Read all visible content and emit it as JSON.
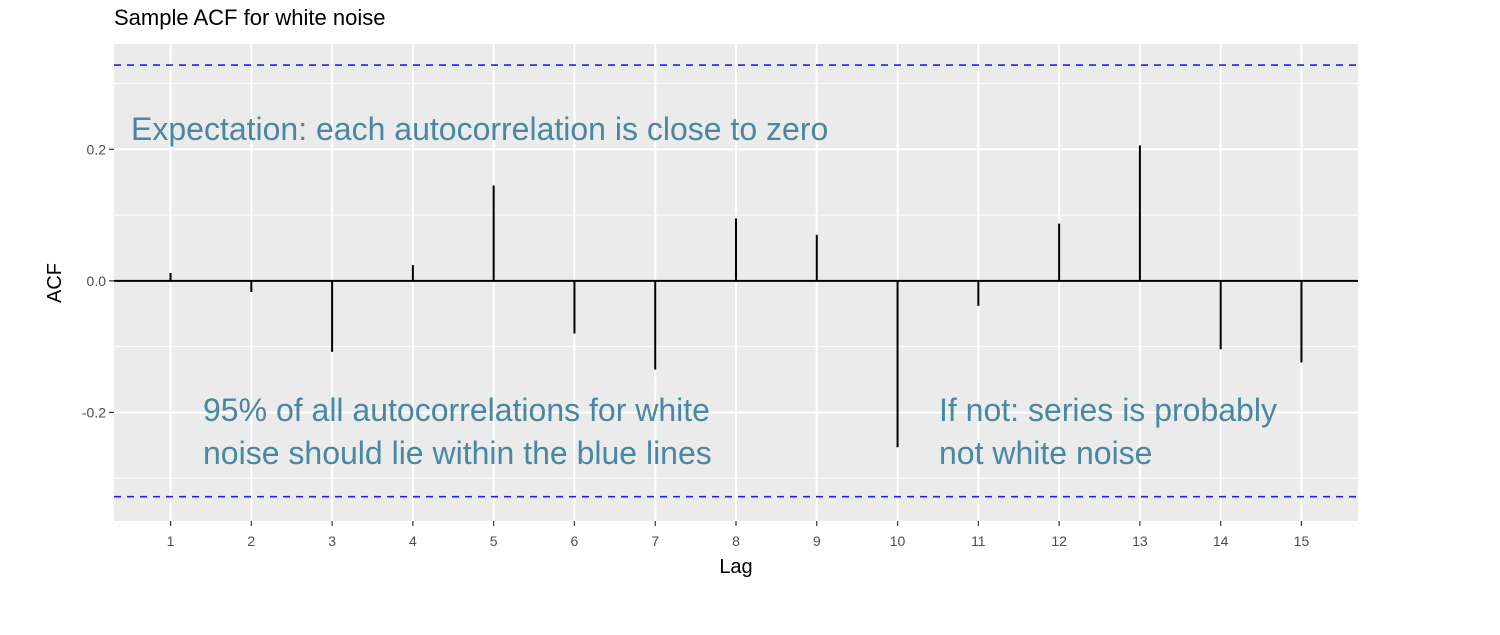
{
  "chart_data": {
    "type": "bar",
    "title": "Sample ACF for white noise",
    "xlabel": "Lag",
    "ylabel": "ACF",
    "x": [
      1,
      2,
      3,
      4,
      5,
      6,
      7,
      8,
      9,
      10,
      11,
      12,
      13,
      14,
      15
    ],
    "values": [
      0.012,
      -0.017,
      -0.108,
      0.024,
      0.145,
      -0.08,
      -0.135,
      0.095,
      0.07,
      -0.253,
      -0.038,
      0.087,
      0.206,
      -0.104,
      -0.124
    ],
    "xlim": [
      0.3,
      15.7
    ],
    "ylim": [
      -0.365,
      0.36
    ],
    "yticks": [
      -0.2,
      0.0,
      0.2
    ],
    "ytick_labels": [
      "-0.2",
      "0.0",
      "0.2"
    ],
    "xtick_labels": [
      "1",
      "2",
      "3",
      "4",
      "5",
      "6",
      "7",
      "8",
      "9",
      "10",
      "11",
      "12",
      "13",
      "14",
      "15"
    ],
    "confidence_bounds": [
      -0.328,
      0.328
    ],
    "grid": true,
    "legend": "none",
    "annotations": [
      "Expectation: each autocorrelation is close to zero",
      "95% of all autocorrelations for white noise should lie within the blue lines",
      "If not: series is probably not white noise"
    ]
  },
  "annotations": {
    "expectation": "Expectation: each autocorrelation is close to zero",
    "ci_line1": "95% of all autocorrelations for white",
    "ci_line2": "noise should lie within the blue lines",
    "notwn_line1": "If not: series is probably",
    "notwn_line2": "not white noise"
  },
  "colors": {
    "panel_background": "#ebebeb",
    "grid": "#ffffff",
    "bars": "#000000",
    "bounds": "#1f1fff",
    "annotation_text": "#4a87a3"
  }
}
